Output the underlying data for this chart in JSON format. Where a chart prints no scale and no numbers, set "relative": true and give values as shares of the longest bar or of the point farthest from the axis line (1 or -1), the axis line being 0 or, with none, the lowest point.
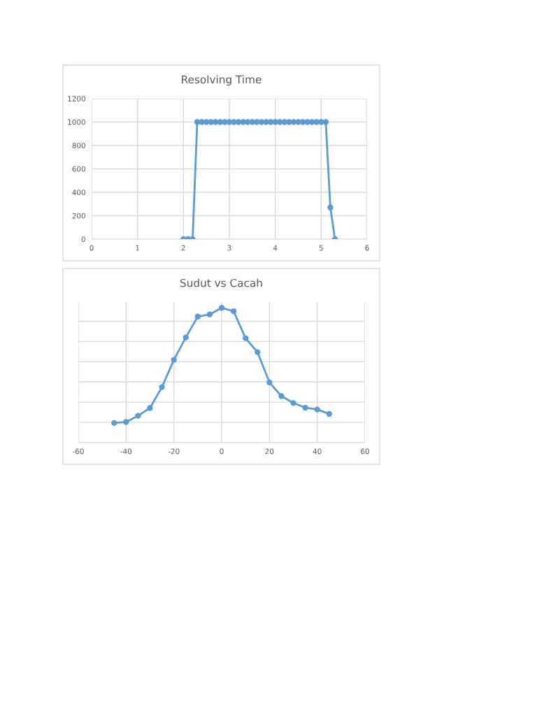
{
  "chart_data": [
    {
      "type": "line",
      "title": "Resolving Time",
      "x": [
        2.0,
        2.1,
        2.2,
        2.3,
        2.4,
        2.5,
        2.6,
        2.7,
        2.8,
        2.9,
        3.0,
        3.1,
        3.2,
        3.3,
        3.4,
        3.5,
        3.6,
        3.7,
        3.8,
        3.9,
        4.0,
        4.1,
        4.2,
        4.3,
        4.4,
        4.5,
        4.6,
        4.7,
        4.8,
        4.9,
        5.0,
        5.1,
        5.2,
        5.3
      ],
      "series": [
        {
          "color": "#5b9bd5",
          "values": [
            0,
            0,
            0,
            1000,
            1000,
            1000,
            1000,
            1000,
            1000,
            1000,
            1000,
            1000,
            1000,
            1000,
            1000,
            1000,
            1000,
            1000,
            1000,
            1000,
            1000,
            1000,
            1000,
            1000,
            1000,
            1000,
            1000,
            1000,
            1000,
            1000,
            1000,
            1000,
            270,
            0
          ]
        }
      ],
      "xlim": [
        0,
        6
      ],
      "xticks": [
        0,
        1,
        2,
        3,
        4,
        5,
        6
      ],
      "ylim": [
        0,
        1200
      ],
      "yticks": [
        0,
        200,
        400,
        600,
        800,
        1000,
        1200
      ],
      "grid": true,
      "marker": "circle",
      "line_style": "solid"
    },
    {
      "type": "line",
      "title": "Sudut vs Cacah",
      "relative": true,
      "x": [
        -45,
        -40,
        -35,
        -30,
        -25,
        -20,
        -15,
        -10,
        -5,
        0,
        5,
        10,
        15,
        20,
        25,
        30,
        35,
        40,
        45
      ],
      "series": [
        {
          "color": "#5b9bd5",
          "values": [
            0.146,
            0.153,
            0.199,
            0.257,
            0.412,
            0.614,
            0.78,
            0.935,
            0.951,
            1,
            0.975,
            0.775,
            0.671,
            0.447,
            0.345,
            0.294,
            0.259,
            0.246,
            0.213
          ]
        }
      ],
      "xlim": [
        -60,
        60
      ],
      "xticks": [
        -60,
        -40,
        -20,
        0,
        20,
        40,
        60
      ],
      "grid": true,
      "marker": "circle",
      "line_style": "solid"
    }
  ]
}
